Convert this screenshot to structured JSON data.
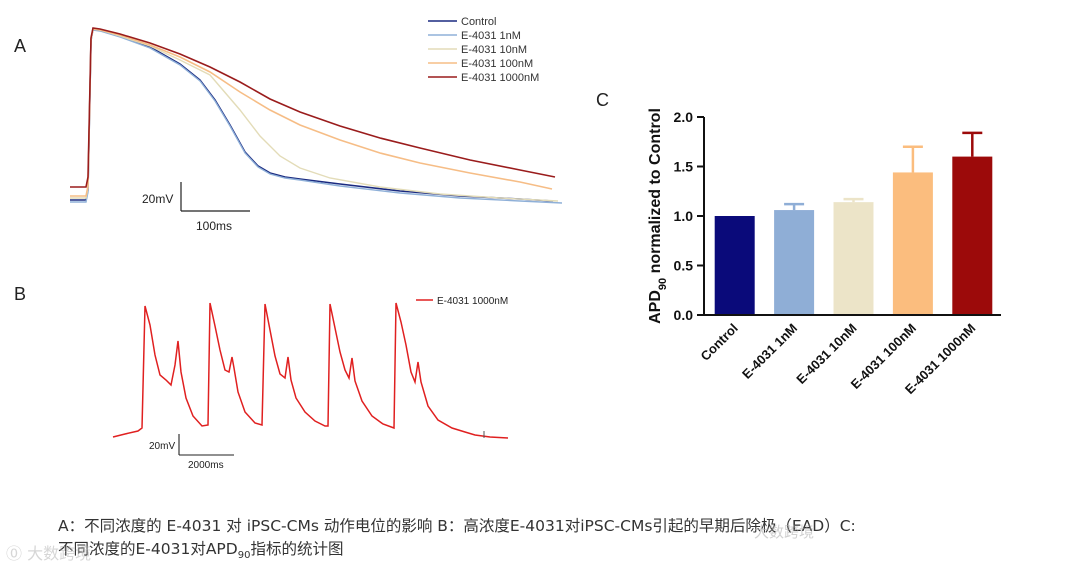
{
  "panels": {
    "a": {
      "letter": "A",
      "legend": [
        {
          "label": "Control",
          "color": "#1a2a80"
        },
        {
          "label": "E-4031 1nM",
          "color": "#8fb0d8"
        },
        {
          "label": "E-4031 10nM",
          "color": "#e3dcb8"
        },
        {
          "label": "E-4031 100nM",
          "color": "#f6bd86"
        },
        {
          "label": "E-4031 1000nM",
          "color": "#9a1c1c"
        }
      ],
      "scale_v": "20mV",
      "scale_t": "100ms"
    },
    "b": {
      "letter": "B",
      "legend": [
        {
          "label": "E-4031 1000nM",
          "color": "#e02020"
        }
      ],
      "scale_v": "20mV",
      "scale_t": "2000ms"
    },
    "c": {
      "letter": "C"
    }
  },
  "chart_data": [
    {
      "type": "line",
      "panel": "A",
      "description_units": "membrane potential traces (relative)",
      "series": [
        {
          "name": "Control",
          "color": "#1a2a80"
        },
        {
          "name": "E-4031 1nM",
          "color": "#8fb0d8"
        },
        {
          "name": "E-4031 10nM",
          "color": "#e3dcb8"
        },
        {
          "name": "E-4031 100nM",
          "color": "#f6bd86"
        },
        {
          "name": "E-4031 1000nM",
          "color": "#9a1c1c"
        }
      ],
      "scale_bar": {
        "voltage": "20mV",
        "time": "100ms"
      }
    },
    {
      "type": "line",
      "panel": "B",
      "series": [
        {
          "name": "E-4031 1000nM",
          "color": "#e02020"
        }
      ],
      "scale_bar": {
        "voltage": "20mV",
        "time": "2000ms"
      }
    },
    {
      "type": "bar",
      "panel": "C",
      "categories": [
        "Control",
        "E-4031 1nM",
        "E-4031 10nM",
        "E-4031 100nM",
        "E-4031 1000nM"
      ],
      "values": [
        1.0,
        1.06,
        1.14,
        1.44,
        1.6
      ],
      "errors": [
        0.0,
        0.06,
        0.03,
        0.26,
        0.24
      ],
      "colors": [
        "#0a0a7a",
        "#8faed6",
        "#ece4c8",
        "#fbbd7e",
        "#9c0a0a"
      ],
      "ylabel_main": "APD",
      "ylabel_sub": "90",
      "ylabel_rest": " normalized to Control",
      "ylim": [
        0.0,
        2.0
      ],
      "yticks": [
        "0.0",
        "0.5",
        "1.0",
        "1.5",
        "2.0"
      ]
    }
  ],
  "caption": {
    "line1": "A：不同浓度的 E-4031 对 iPSC-CMs 动作电位的影响  B：高浓度E-4031对iPSC-CMs引起的早期后除极（EAD）C:",
    "line2_pre": "不同浓度的E-4031对APD",
    "line2_sub": "90",
    "line2_post": "指标的统计图"
  },
  "watermarks": [
    "⓪ 大数跨境",
    "大数跨境"
  ]
}
